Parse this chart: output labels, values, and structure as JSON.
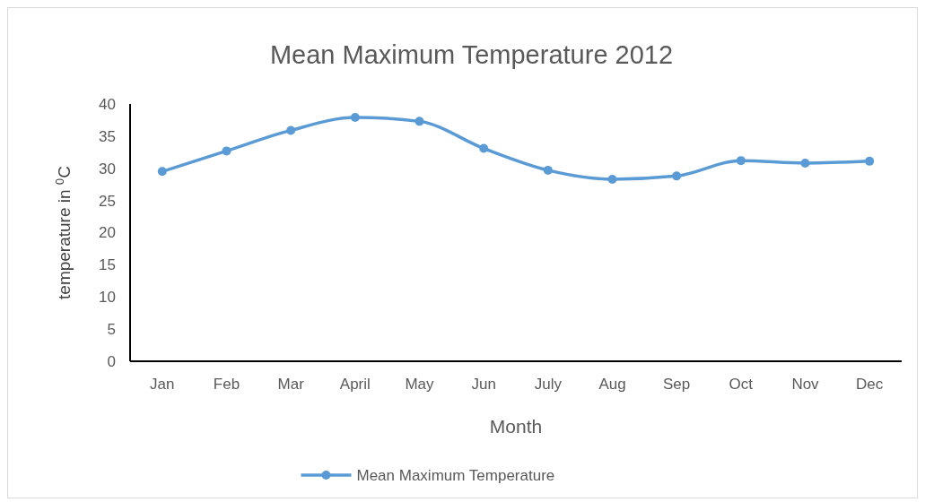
{
  "chart_data": {
    "type": "line",
    "title": "Mean Maximum Temperature 2012",
    "xlabel": "Month",
    "ylabel": "temperature in $^{0}$C",
    "categories": [
      "Jan",
      "Feb",
      "Mar",
      "April",
      "May",
      "Jun",
      "July",
      "Aug",
      "Sep",
      "Oct",
      "Nov",
      "Dec"
    ],
    "series": [
      {
        "name": "Mean Maximum Temperature",
        "color": "#5b9bd5",
        "values": [
          29.5,
          32.7,
          35.9,
          37.9,
          37.3,
          33.1,
          29.7,
          28.3,
          28.8,
          31.2,
          30.8,
          31.1
        ]
      }
    ],
    "ylim": [
      0,
      40
    ],
    "yticks": [
      0,
      5,
      10,
      15,
      20,
      25,
      30,
      35,
      40
    ],
    "grid": false,
    "legend": "bottom",
    "marker": "circle",
    "line_style": "solid"
  }
}
